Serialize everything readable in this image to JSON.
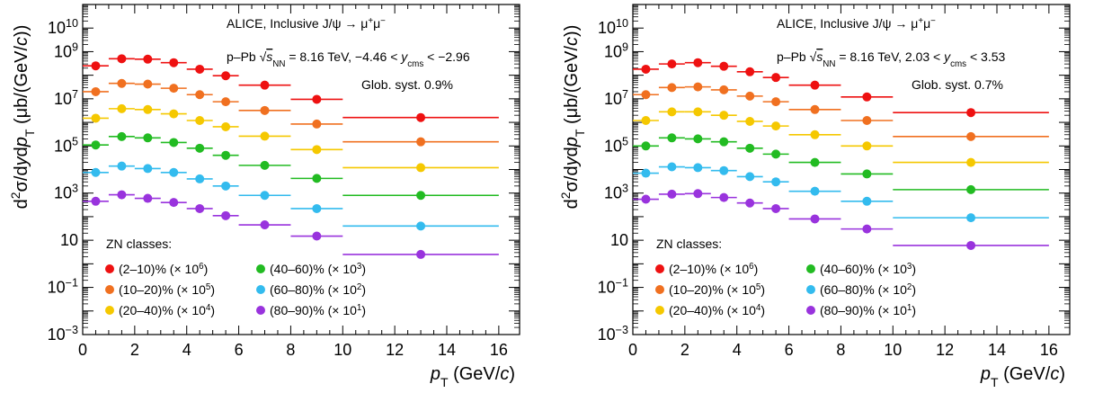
{
  "chart_data": [
    {
      "type": "scatter",
      "title": "ALICE, Inclusive J/ψ → μ⁺μ⁻",
      "subtitle": "p–Pb √s_NN = 8.16 TeV, −4.46 < y_cms < −2.96",
      "annotation": "Glob. syst. 0.9%",
      "xlabel": "p_T (GeV/c)",
      "ylabel": "d²σ/dydp_T (μb/(GeV/c))",
      "xlim": [
        0,
        16.8
      ],
      "ylim": [
        0.001,
        100000000000
      ],
      "yscale": "log",
      "legend_title": "ZN classes:",
      "legend_position": "bottom-left",
      "x_bins": [
        [
          0,
          1
        ],
        [
          1,
          2
        ],
        [
          2,
          3
        ],
        [
          3,
          4
        ],
        [
          4,
          5
        ],
        [
          5,
          6
        ],
        [
          6,
          8
        ],
        [
          8,
          10
        ],
        [
          10,
          16
        ]
      ],
      "series": [
        {
          "name": "(2–10)% (× 10⁶)",
          "color": "#ee1111",
          "values": [
            250000000,
            500000000,
            480000000,
            340000000,
            180000000,
            95000000,
            38000000,
            9500000,
            1600000
          ]
        },
        {
          "name": "(10–20)% (× 10⁵)",
          "color": "#f07020",
          "values": [
            20000000,
            45000000,
            42000000,
            28000000,
            15000000,
            7500000,
            3200000,
            850000,
            150000
          ]
        },
        {
          "name": "(20–40)% (× 10⁴)",
          "color": "#f5c800",
          "values": [
            1500000,
            3800000,
            3500000,
            2300000,
            1200000,
            650000,
            260000,
            70000,
            12000
          ]
        },
        {
          "name": "(40–60)% (× 10³)",
          "color": "#22bb22",
          "values": [
            110000,
            250000,
            220000,
            140000,
            80000,
            40000,
            15000,
            4200,
            800
          ]
        },
        {
          "name": "(60–80)% (× 10²)",
          "color": "#33bbee",
          "values": [
            7500,
            14000,
            11000,
            7500,
            4000,
            2000,
            800,
            220,
            40
          ]
        },
        {
          "name": "(80–90)% (× 10¹)",
          "color": "#9933dd",
          "values": [
            450,
            850,
            600,
            400,
            220,
            110,
            45,
            15,
            2.5
          ]
        }
      ],
      "x_ticks": [
        "0",
        "2",
        "4",
        "6",
        "8",
        "10",
        "12",
        "14",
        "16"
      ],
      "y_ticks": [
        "10⁻³",
        "10⁻¹",
        "10",
        "10³",
        "10⁵",
        "10⁷",
        "10⁹",
        "10¹⁰"
      ]
    },
    {
      "type": "scatter",
      "title": "ALICE, Inclusive J/ψ → μ⁺μ⁻",
      "subtitle": "p–Pb √s_NN = 8.16 TeV, 2.03 < y_cms < 3.53",
      "annotation": "Glob. syst. 0.7%",
      "xlabel": "p_T (GeV/c)",
      "ylabel": "d²σ/dydp_T (μb/(GeV/c))",
      "xlim": [
        0,
        16.8
      ],
      "ylim": [
        0.001,
        100000000000
      ],
      "yscale": "log",
      "legend_title": "ZN classes:",
      "legend_position": "bottom-left",
      "x_bins": [
        [
          0,
          1
        ],
        [
          1,
          2
        ],
        [
          2,
          3
        ],
        [
          3,
          4
        ],
        [
          4,
          5
        ],
        [
          5,
          6
        ],
        [
          6,
          8
        ],
        [
          8,
          10
        ],
        [
          10,
          16
        ]
      ],
      "series": [
        {
          "name": "(2–10)% (× 10⁶)",
          "color": "#ee1111",
          "values": [
            180000000,
            300000000,
            340000000,
            240000000,
            140000000,
            80000000,
            38000000,
            12000000,
            2600000
          ]
        },
        {
          "name": "(10–20)% (× 10⁵)",
          "color": "#f07020",
          "values": [
            15000000,
            30000000,
            32000000,
            24000000,
            13000000,
            7500000,
            3500000,
            1200000,
            250000
          ]
        },
        {
          "name": "(20–40)% (× 10⁴)",
          "color": "#f5c800",
          "values": [
            1200000,
            2800000,
            2800000,
            2000000,
            1100000,
            700000,
            300000,
            100000,
            20000
          ]
        },
        {
          "name": "(40–60)% (× 10³)",
          "color": "#22bb22",
          "values": [
            100000,
            220000,
            200000,
            150000,
            80000,
            45000,
            20000,
            6500,
            1400
          ]
        },
        {
          "name": "(60–80)% (× 10²)",
          "color": "#33bbee",
          "values": [
            7000,
            13000,
            12000,
            9000,
            5000,
            3000,
            1200,
            450,
            90
          ]
        },
        {
          "name": "(80–90)% (× 10¹)",
          "color": "#9933dd",
          "values": [
            550,
            900,
            950,
            650,
            380,
            220,
            80,
            30,
            6
          ]
        }
      ],
      "x_ticks": [
        "0",
        "2",
        "4",
        "6",
        "8",
        "10",
        "12",
        "14",
        "16"
      ],
      "y_ticks": [
        "10⁻³",
        "10⁻¹",
        "10",
        "10³",
        "10⁵",
        "10⁷",
        "10⁹",
        "10¹⁰"
      ]
    }
  ]
}
